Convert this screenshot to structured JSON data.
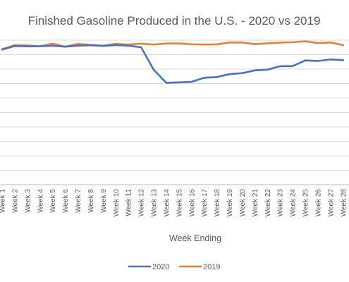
{
  "chart_data": {
    "type": "line",
    "title": "Finished Gasoline Produced in the U.S. - 2020 vs 2019",
    "xlabel": "Week Ending",
    "ylabel": "",
    "categories": [
      "Week 1",
      "Week 2",
      "Week 3",
      "Week 4",
      "Week 5",
      "Week 6",
      "Week 7",
      "Week 8",
      "Week 9",
      "Week 10",
      "Week 11",
      "Week 12",
      "Week 13",
      "Week 14",
      "Week 15",
      "Week 16",
      "Week 17",
      "Week 18",
      "Week 19",
      "Week 20",
      "Week 21",
      "Week 22",
      "Week 23",
      "Week 24",
      "Week 25",
      "Week 26",
      "Week 27",
      "Week 28"
    ],
    "ylim": [
      0,
      10
    ],
    "grid": true,
    "legend": "bottom",
    "series": [
      {
        "name": "2020",
        "color": "#4472C4",
        "values": [
          9.35,
          9.6,
          9.57,
          9.58,
          9.62,
          9.55,
          9.62,
          9.65,
          9.6,
          9.66,
          9.62,
          9.51,
          7.95,
          7.05,
          7.08,
          7.12,
          7.4,
          7.45,
          7.65,
          7.72,
          7.91,
          7.96,
          8.2,
          8.21,
          8.6,
          8.56,
          8.67,
          8.62
        ]
      },
      {
        "name": "2019",
        "color": "#ED7D31",
        "values": [
          9.38,
          9.65,
          9.64,
          9.58,
          9.76,
          9.55,
          9.74,
          9.68,
          9.62,
          9.75,
          9.7,
          9.76,
          9.7,
          9.77,
          9.77,
          9.72,
          9.7,
          9.71,
          9.84,
          9.84,
          9.73,
          9.78,
          9.83,
          9.86,
          9.92,
          9.8,
          9.84,
          9.66
        ]
      }
    ]
  }
}
